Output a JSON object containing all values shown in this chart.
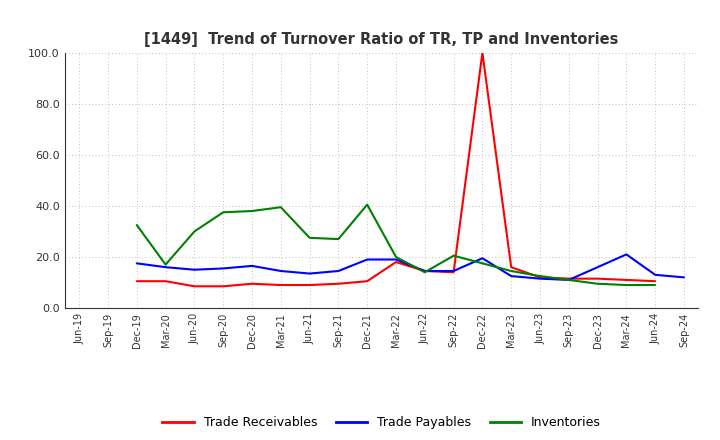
{
  "title": "[1449]  Trend of Turnover Ratio of TR, TP and Inventories",
  "x_labels": [
    "Jun-19",
    "Sep-19",
    "Dec-19",
    "Mar-20",
    "Jun-20",
    "Sep-20",
    "Dec-20",
    "Mar-21",
    "Jun-21",
    "Sep-21",
    "Dec-21",
    "Mar-22",
    "Jun-22",
    "Sep-22",
    "Dec-22",
    "Mar-23",
    "Jun-23",
    "Sep-23",
    "Dec-23",
    "Mar-24",
    "Jun-24",
    "Sep-24"
  ],
  "trade_receivables": [
    null,
    null,
    10.5,
    10.5,
    8.5,
    8.5,
    9.5,
    9.0,
    9.0,
    9.5,
    10.5,
    18.0,
    14.5,
    14.0,
    100.0,
    16.0,
    12.0,
    11.5,
    11.5,
    11.0,
    10.5,
    null
  ],
  "trade_payables": [
    null,
    null,
    17.5,
    16.0,
    15.0,
    15.5,
    16.5,
    14.5,
    13.5,
    14.5,
    19.0,
    19.0,
    14.5,
    14.5,
    19.5,
    12.5,
    11.5,
    11.0,
    16.0,
    21.0,
    13.0,
    12.0
  ],
  "inventories": [
    null,
    null,
    32.5,
    17.0,
    30.0,
    37.5,
    38.0,
    39.5,
    27.5,
    27.0,
    40.5,
    20.0,
    14.0,
    20.5,
    17.5,
    14.5,
    12.5,
    11.0,
    9.5,
    9.0,
    9.0,
    null
  ],
  "ylim": [
    0.0,
    100.0
  ],
  "yticks": [
    0.0,
    20.0,
    40.0,
    60.0,
    80.0,
    100.0
  ],
  "line_colors": {
    "trade_receivables": "#FF0000",
    "trade_payables": "#0000FF",
    "inventories": "#008000"
  },
  "legend_labels": [
    "Trade Receivables",
    "Trade Payables",
    "Inventories"
  ],
  "background_color": "#FFFFFF",
  "grid_color": "#999999",
  "title_color": "#333333"
}
